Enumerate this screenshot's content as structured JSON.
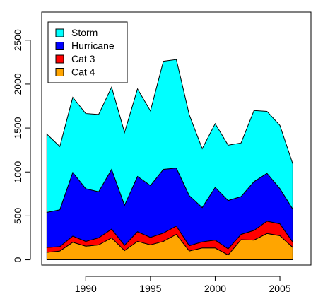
{
  "chart_data": {
    "type": "area",
    "stacked": true,
    "title": "",
    "xlabel": "",
    "ylabel": "",
    "xlim": [
      1986.6,
      2007.4
    ],
    "ylim": [
      -60,
      2820
    ],
    "x_ticks": [
      1990,
      1995,
      2000,
      2005
    ],
    "y_ticks": [
      0,
      500,
      1000,
      1500,
      2000,
      2500
    ],
    "legend_position": "top-left",
    "x": [
      1987,
      1988,
      1989,
      1990,
      1991,
      1992,
      1993,
      1994,
      1995,
      1996,
      1997,
      1998,
      1999,
      2000,
      2001,
      2002,
      2003,
      2004,
      2005,
      2006
    ],
    "series": [
      {
        "name": "Cat 4",
        "color": "#FFA500",
        "values": [
          85,
          100,
          200,
          155,
          170,
          250,
          105,
          210,
          170,
          210,
          290,
          100,
          135,
          135,
          55,
          230,
          225,
          300,
          275,
          140
        ]
      },
      {
        "name": "Cat 3",
        "color": "#FF0000",
        "values": [
          55,
          50,
          70,
          55,
          80,
          100,
          60,
          110,
          85,
          95,
          95,
          60,
          70,
          90,
          70,
          60,
          110,
          140,
          135,
          60
        ]
      },
      {
        "name": "Hurricane",
        "color": "#0000FF",
        "values": [
          400,
          420,
          725,
          600,
          525,
          680,
          455,
          630,
          590,
          725,
          660,
          570,
          390,
          600,
          550,
          430,
          555,
          545,
          400,
          375
        ]
      },
      {
        "name": "Storm",
        "color": "#00FFFF",
        "values": [
          890,
          720,
          855,
          855,
          880,
          935,
          830,
          995,
          850,
          1230,
          1235,
          920,
          670,
          725,
          630,
          610,
          810,
          705,
          720,
          515
        ]
      }
    ]
  }
}
